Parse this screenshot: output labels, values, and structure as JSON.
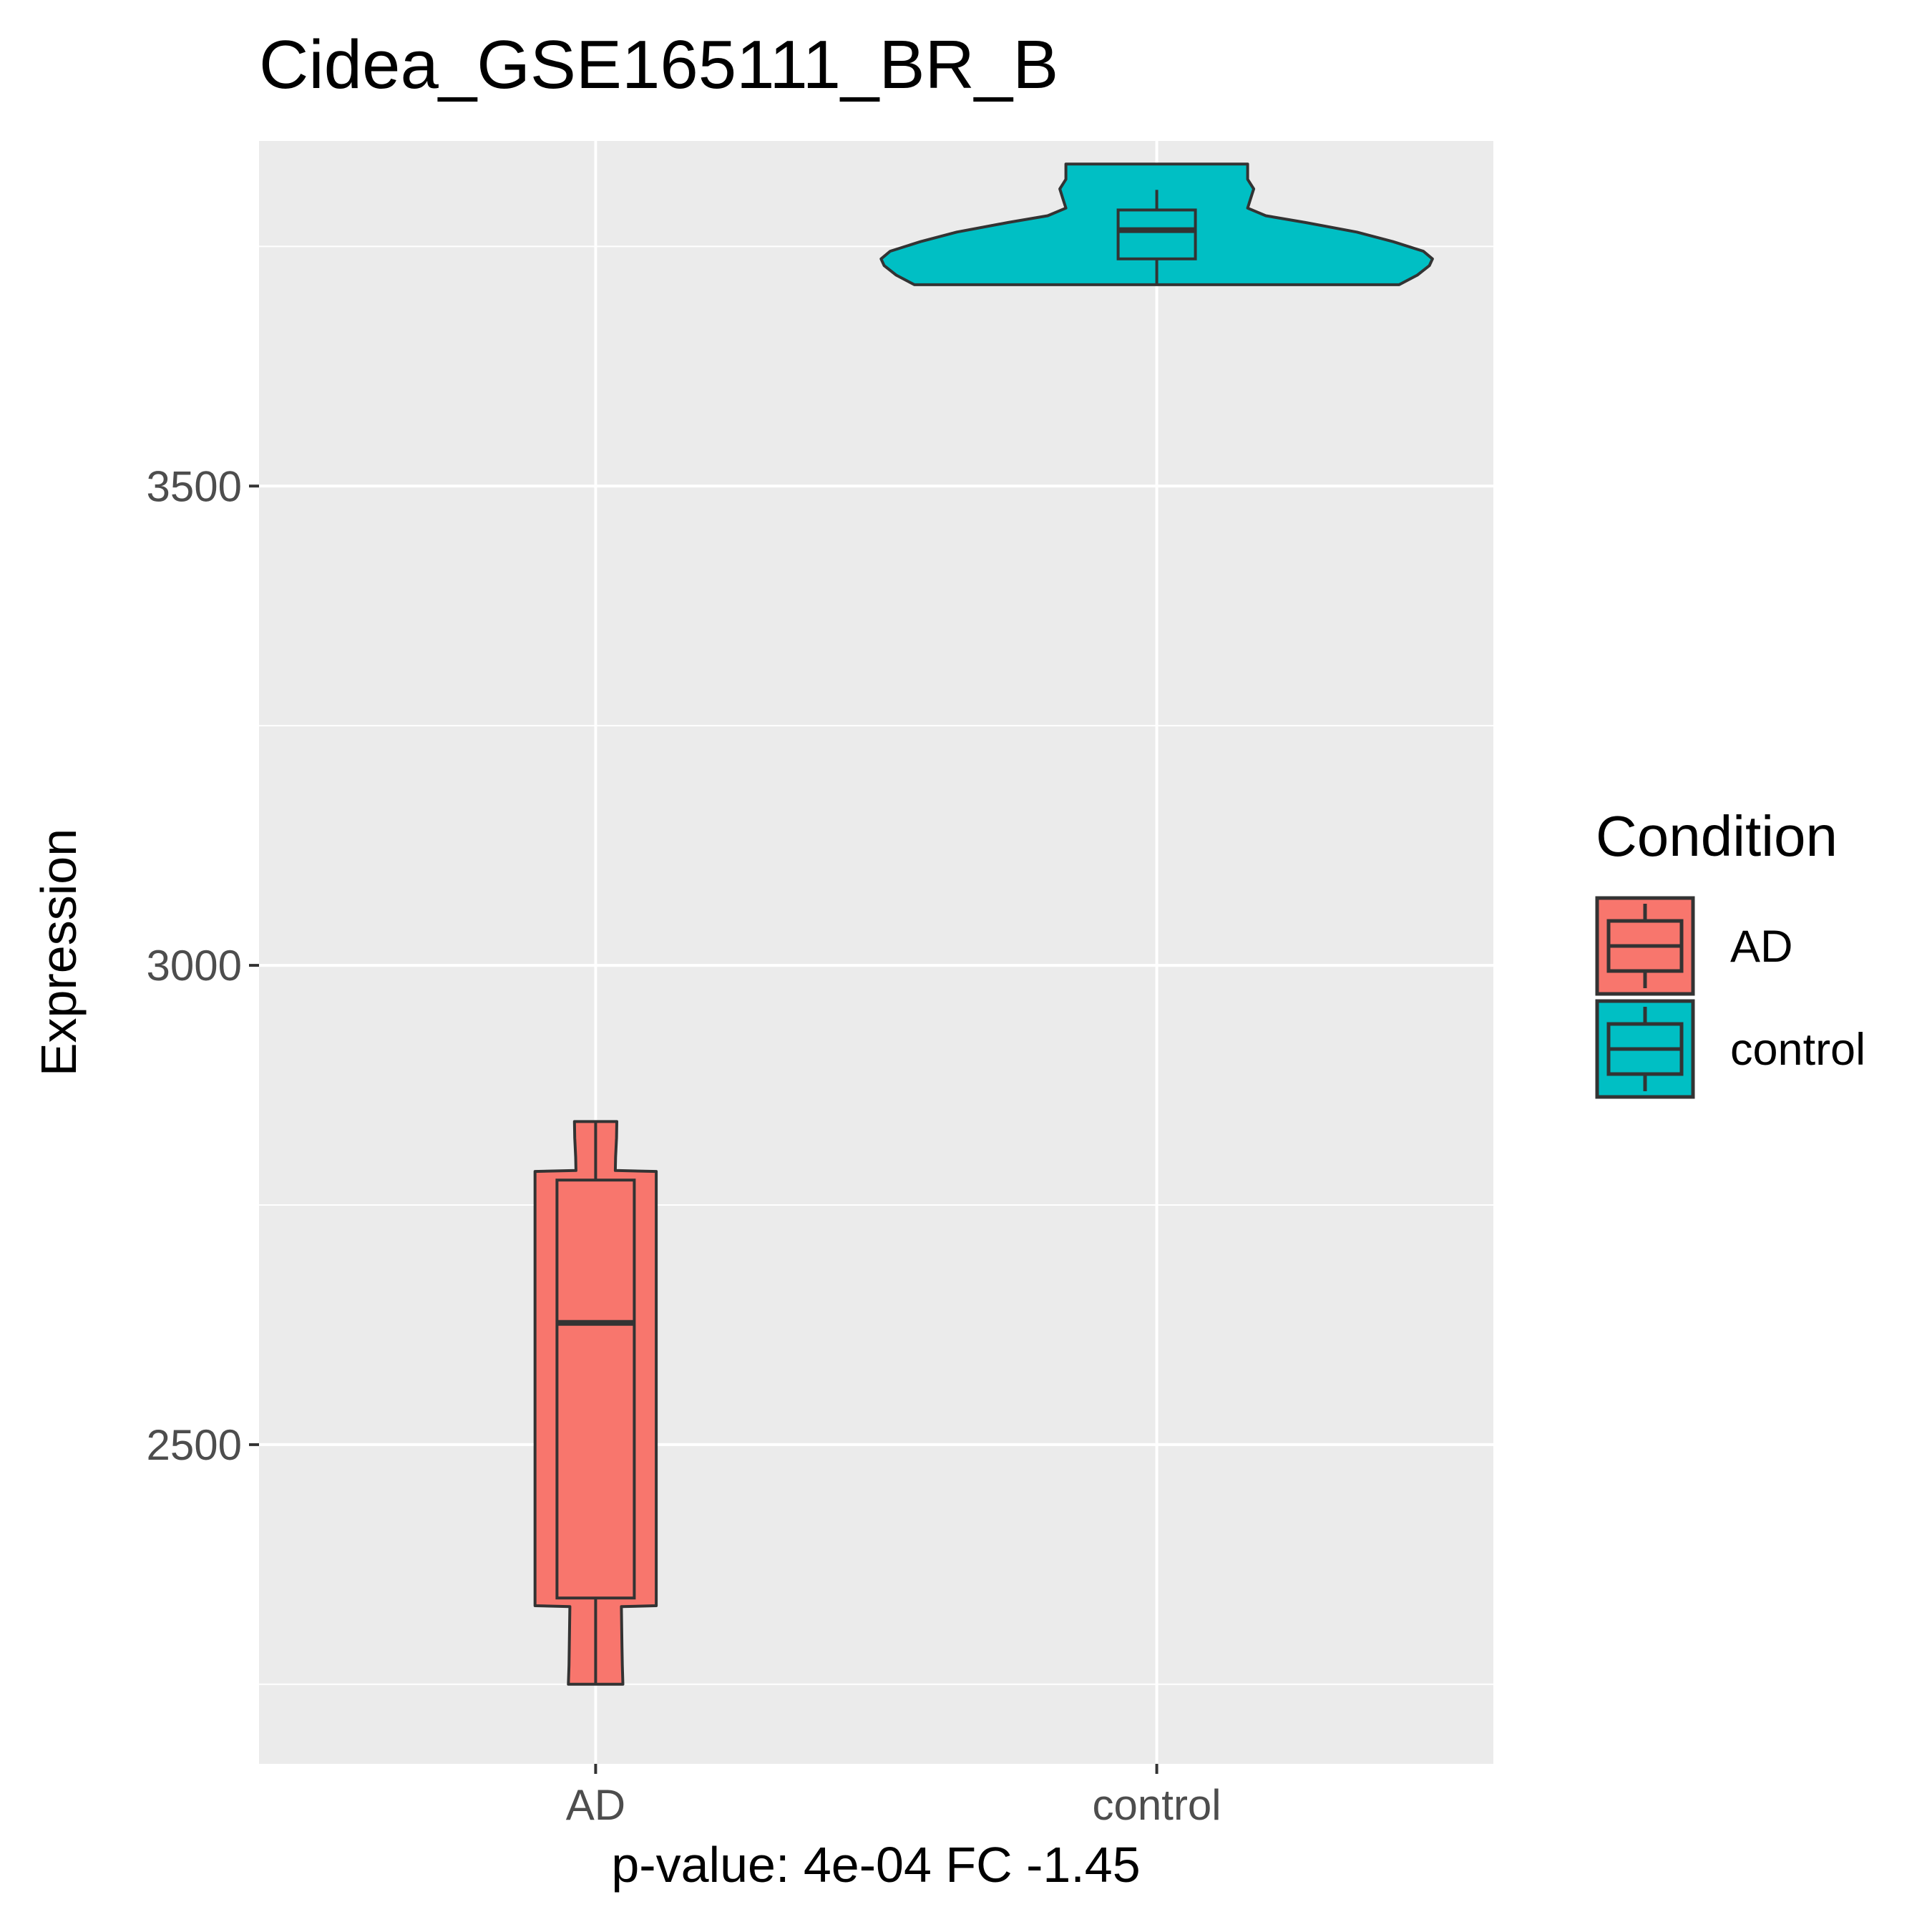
{
  "chart_data": {
    "type": "violin+box",
    "title": "Cidea_GSE165111_BR_B",
    "xlabel": "p-value: 4e-04 FC -1.45",
    "ylabel": "Expression",
    "categories": [
      "AD",
      "control"
    ],
    "ylim": [
      2167,
      3860
    ],
    "y_ticks": [
      2500,
      3000,
      3500
    ],
    "y_tick_labels": [
      "2500",
      "3000",
      "3500"
    ],
    "grid": true,
    "legend": {
      "title": "Condition",
      "position": "right",
      "entries": [
        {
          "label": "AD",
          "color": "#F8766D"
        },
        {
          "label": "control",
          "color": "#00BFC4"
        }
      ]
    },
    "groups": [
      {
        "name": "AD",
        "color": "#F8766D",
        "violin_profile": [
          [
            2250,
            0.09
          ],
          [
            2270,
            0.088
          ],
          [
            2290,
            0.087
          ],
          [
            2310,
            0.086
          ],
          [
            2331,
            0.085
          ],
          [
            2332,
            0.2
          ],
          [
            2500,
            0.2
          ],
          [
            2620,
            0.2
          ],
          [
            2780,
            0.2
          ],
          [
            2785,
            0.2
          ],
          [
            2786,
            0.065
          ],
          [
            2800,
            0.066
          ],
          [
            2820,
            0.069
          ],
          [
            2837,
            0.07
          ]
        ],
        "box": {
          "min": 2250,
          "q1": 2340,
          "median": 2627,
          "q3": 2776,
          "max": 2837
        }
      },
      {
        "name": "control",
        "color": "#00BFC4",
        "violin_profile": [
          [
            3710,
            0.8
          ],
          [
            3720,
            0.86
          ],
          [
            3730,
            0.9
          ],
          [
            3737,
            0.91
          ],
          [
            3745,
            0.88
          ],
          [
            3755,
            0.78
          ],
          [
            3765,
            0.66
          ],
          [
            3775,
            0.49
          ],
          [
            3782,
            0.36
          ],
          [
            3790,
            0.3
          ],
          [
            3800,
            0.31
          ],
          [
            3810,
            0.32
          ],
          [
            3820,
            0.3
          ],
          [
            3830,
            0.3
          ],
          [
            3836,
            0.3
          ]
        ],
        "box": {
          "min": 3710,
          "q1": 3737,
          "median": 3767,
          "q3": 3788,
          "max": 3809
        }
      }
    ]
  }
}
